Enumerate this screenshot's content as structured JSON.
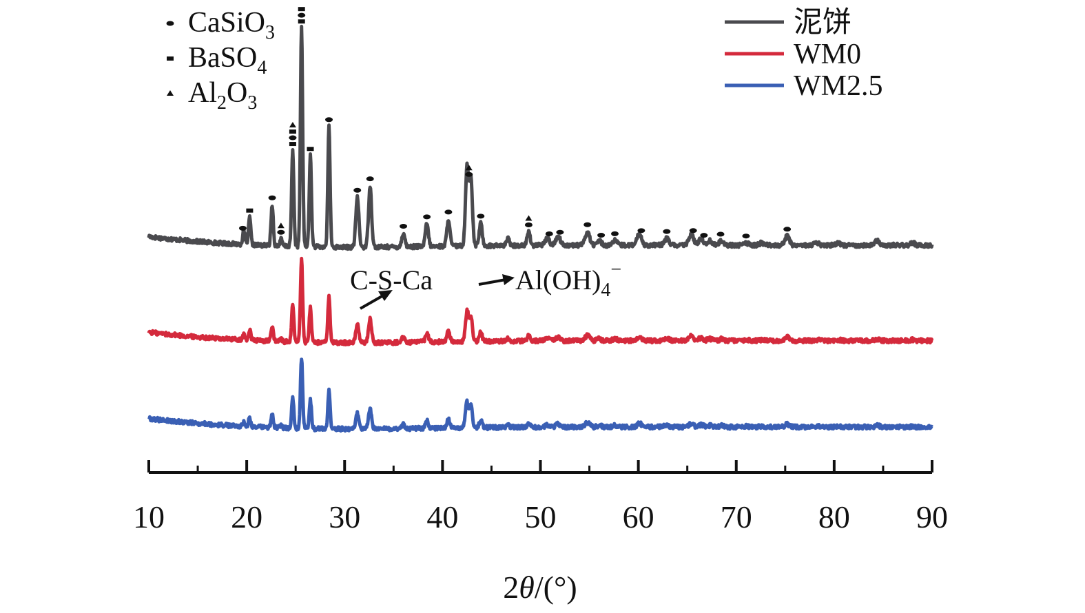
{
  "chart_data": {
    "type": "line",
    "xlabel_prefix": "2",
    "xlabel_theta": "θ",
    "xlabel_suffix": "/(°)",
    "xlim": [
      10,
      90
    ],
    "xticks": [
      10,
      20,
      30,
      40,
      50,
      60,
      70,
      80,
      90
    ],
    "grid": false,
    "legend_position": "top-right",
    "series": [
      {
        "name": "泥饼",
        "color": "#4a4a4e",
        "offset": 0.0
      },
      {
        "name": "WM0",
        "color": "#d42a3c",
        "offset": -0.42
      },
      {
        "name": "WM2.5",
        "color": "#3a5fb4",
        "offset": -0.8
      }
    ],
    "peaks": [
      {
        "x": 19.7,
        "h": 0.06
      },
      {
        "x": 20.3,
        "h": 0.12
      },
      {
        "x": 22.6,
        "h": 0.18
      },
      {
        "x": 23.5,
        "h": 0.03
      },
      {
        "x": 24.7,
        "h": 0.42
      },
      {
        "x": 25.6,
        "h": 0.96
      },
      {
        "x": 26.5,
        "h": 0.4
      },
      {
        "x": 28.4,
        "h": 0.53
      },
      {
        "x": 31.3,
        "h": 0.22
      },
      {
        "x": 32.6,
        "h": 0.27
      },
      {
        "x": 36.0,
        "h": 0.06
      },
      {
        "x": 38.4,
        "h": 0.1
      },
      {
        "x": 40.6,
        "h": 0.12
      },
      {
        "x": 42.5,
        "h": 0.35
      },
      {
        "x": 42.9,
        "h": 0.3
      },
      {
        "x": 43.9,
        "h": 0.1
      },
      {
        "x": 46.7,
        "h": 0.03
      },
      {
        "x": 48.8,
        "h": 0.06
      },
      {
        "x": 50.7,
        "h": 0.03
      },
      {
        "x": 51.8,
        "h": 0.04
      },
      {
        "x": 54.8,
        "h": 0.06
      },
      {
        "x": 56.0,
        "h": 0.02
      },
      {
        "x": 57.6,
        "h": 0.02
      },
      {
        "x": 60.1,
        "h": 0.05
      },
      {
        "x": 62.9,
        "h": 0.03
      },
      {
        "x": 65.4,
        "h": 0.05
      },
      {
        "x": 66.4,
        "h": 0.03
      },
      {
        "x": 67.3,
        "h": 0.02
      },
      {
        "x": 68.5,
        "h": 0.02
      },
      {
        "x": 71.0,
        "h": 0.01
      },
      {
        "x": 72.6,
        "h": 0.01
      },
      {
        "x": 75.2,
        "h": 0.04
      },
      {
        "x": 78.2,
        "h": 0.01
      },
      {
        "x": 80.4,
        "h": 0.01
      },
      {
        "x": 84.4,
        "h": 0.02
      },
      {
        "x": 88.0,
        "h": 0.01
      }
    ],
    "phase_markers": [
      {
        "x": 19.6,
        "marks": [
          "circle"
        ]
      },
      {
        "x": 20.3,
        "marks": [
          "square"
        ]
      },
      {
        "x": 22.6,
        "marks": [
          "circle"
        ]
      },
      {
        "x": 23.5,
        "marks": [
          "triangle",
          "circle"
        ]
      },
      {
        "x": 24.7,
        "marks": [
          "triangle",
          "square",
          "circle",
          "square"
        ]
      },
      {
        "x": 25.6,
        "marks": [
          "square",
          "circle",
          "square"
        ]
      },
      {
        "x": 26.5,
        "marks": [
          "square"
        ]
      },
      {
        "x": 28.4,
        "marks": [
          "circle"
        ]
      },
      {
        "x": 31.3,
        "marks": [
          "circle"
        ]
      },
      {
        "x": 32.6,
        "marks": [
          "circle"
        ]
      },
      {
        "x": 36.0,
        "marks": [
          "circle"
        ]
      },
      {
        "x": 38.4,
        "marks": [
          "circle"
        ]
      },
      {
        "x": 40.6,
        "marks": [
          "circle"
        ]
      },
      {
        "x": 42.7,
        "marks": [
          "triangle",
          "circle"
        ]
      },
      {
        "x": 43.9,
        "marks": [
          "circle"
        ]
      },
      {
        "x": 48.8,
        "marks": [
          "triangle",
          "circle"
        ]
      },
      {
        "x": 50.9,
        "marks": [
          "circle"
        ]
      },
      {
        "x": 52.0,
        "marks": [
          "circle"
        ]
      },
      {
        "x": 54.8,
        "marks": [
          "circle"
        ]
      },
      {
        "x": 56.2,
        "marks": [
          "circle"
        ]
      },
      {
        "x": 57.6,
        "marks": [
          "circle"
        ]
      },
      {
        "x": 60.3,
        "marks": [
          "circle"
        ]
      },
      {
        "x": 62.9,
        "marks": [
          "circle"
        ]
      },
      {
        "x": 65.6,
        "marks": [
          "circle"
        ]
      },
      {
        "x": 66.7,
        "marks": [
          "circle"
        ]
      },
      {
        "x": 68.4,
        "marks": [
          "circle"
        ]
      },
      {
        "x": 71.0,
        "marks": [
          "circle"
        ]
      },
      {
        "x": 75.2,
        "marks": [
          "circle"
        ]
      }
    ],
    "phase_key": [
      {
        "marker": "circle",
        "base": "CaSiO",
        "sub": "3",
        "base2": "",
        "sub2": ""
      },
      {
        "marker": "square",
        "base": "BaSO",
        "sub": "4",
        "base2": "",
        "sub2": ""
      },
      {
        "marker": "triangle",
        "base": "Al",
        "sub": "2",
        "base2": "O",
        "sub2": "3"
      }
    ],
    "annotations": [
      {
        "text": "C-S-Ca",
        "sup": ""
      },
      {
        "text": "Al(OH)",
        "sub": "4",
        "sup": "−"
      }
    ]
  }
}
